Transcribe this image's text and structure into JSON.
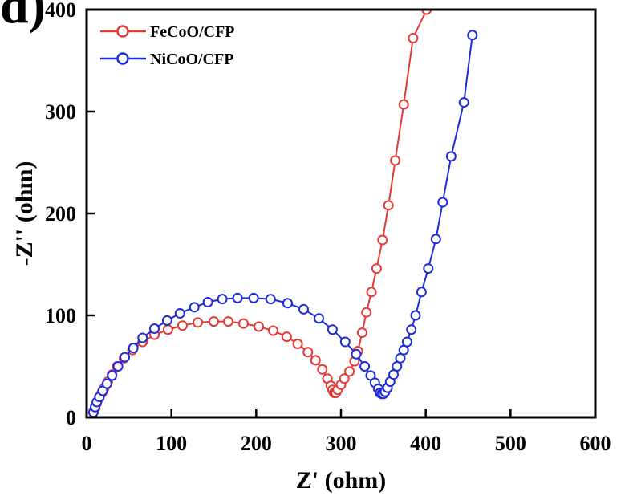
{
  "panel_label": "d)",
  "chart_data": {
    "type": "scatter",
    "title": "",
    "xlabel": "Z' (ohm)",
    "ylabel": "-Z'' (ohm)",
    "xlim": [
      0,
      600
    ],
    "ylim": [
      0,
      400
    ],
    "xticks": [
      0,
      100,
      200,
      300,
      400,
      500,
      600
    ],
    "yticks": [
      0,
      100,
      200,
      300,
      400
    ],
    "legend_position": "top-left",
    "grid": false,
    "series": [
      {
        "name": "FeCoO/CFP",
        "color": "#e53935",
        "marker": "open-circle",
        "x": [
          8,
          10,
          12,
          15,
          18,
          21,
          25,
          30,
          36,
          44,
          54,
          66,
          80,
          96,
          113,
          131,
          150,
          167,
          185,
          203,
          220,
          236,
          249,
          261,
          270,
          278,
          284,
          288,
          290,
          292,
          294,
          296,
          300,
          304,
          310,
          316,
          320,
          325,
          330,
          336,
          342,
          349,
          356,
          364,
          374,
          385,
          401,
          410
        ],
        "y": [
          5,
          9,
          14,
          19,
          24,
          29,
          35,
          42,
          50,
          58,
          66,
          74,
          81,
          86,
          90,
          93,
          94,
          94,
          92,
          89,
          85,
          79,
          72,
          64,
          56,
          47,
          38,
          31,
          27,
          24,
          24,
          27,
          32,
          38,
          45,
          55,
          65,
          83,
          103,
          123,
          146,
          174,
          208,
          252,
          307,
          372,
          400,
          405
        ]
      },
      {
        "name": "NiCoO/CFP",
        "color": "#1e2bd9",
        "marker": "open-circle",
        "x": [
          8,
          10,
          12,
          15,
          19,
          24,
          30,
          37,
          45,
          55,
          66,
          80,
          95,
          110,
          127,
          143,
          160,
          178,
          197,
          217,
          237,
          256,
          274,
          290,
          305,
          318,
          328,
          335,
          340,
          344,
          346,
          348,
          350,
          352,
          355,
          358,
          362,
          366,
          370,
          374,
          378,
          383,
          388,
          395,
          403,
          412,
          420,
          430,
          445,
          455
        ],
        "y": [
          5,
          10,
          15,
          20,
          26,
          33,
          41,
          50,
          59,
          68,
          78,
          87,
          95,
          102,
          108,
          113,
          116,
          117,
          117,
          116,
          112,
          106,
          97,
          86,
          74,
          62,
          50,
          41,
          34,
          28,
          24,
          23,
          23,
          25,
          29,
          35,
          42,
          50,
          58,
          66,
          74,
          86,
          100,
          123,
          146,
          175,
          211,
          256,
          309,
          375
        ]
      }
    ]
  }
}
